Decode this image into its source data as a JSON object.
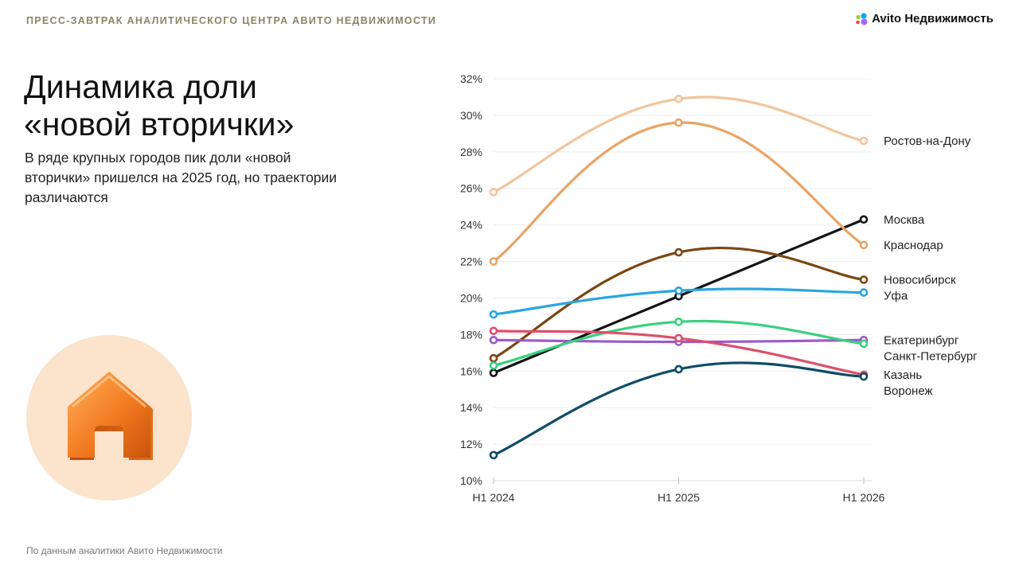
{
  "header": {
    "label": "ПРЕСС-ЗАВТРАК АНАЛИТИЧЕСКОГО ЦЕНТРА АВИТО НЕДВИЖИМОСТИ",
    "logo_text": "Avito Недвижимость"
  },
  "slide": {
    "title_line1": "Динамика доли",
    "title_line2": "«новой вторички»",
    "subtitle": "В ряде крупных городов пик доли «новой вторички» пришелся на 2025 год, но траектории различаются",
    "illustration_icon": "house-icon"
  },
  "footer": {
    "source": "По данным аналитики Авито Недвижимости"
  },
  "chart_data": {
    "type": "line",
    "title": "",
    "xlabel": "",
    "ylabel": "",
    "categories": [
      "H1 2024",
      "H1 2025",
      "H1 2026"
    ],
    "ylim": [
      10,
      32
    ],
    "yticks": [
      10,
      12,
      14,
      16,
      18,
      20,
      22,
      24,
      26,
      28,
      30,
      32
    ],
    "ytick_suffix": "%",
    "grid": true,
    "legend": "direct-labels-right",
    "series": [
      {
        "name": "Ростов-на-Дону",
        "values": [
          25.8,
          30.9,
          28.6
        ],
        "color": "#f1c59c"
      },
      {
        "name": "Москва",
        "values": [
          15.9,
          20.1,
          24.3
        ],
        "color": "#141414"
      },
      {
        "name": "Краснодар",
        "values": [
          22.0,
          29.6,
          22.9
        ],
        "color": "#e9a466"
      },
      {
        "name": "Новосибирск",
        "values": [
          16.7,
          22.5,
          21.0
        ],
        "color": "#7b4613"
      },
      {
        "name": "Уфа",
        "values": [
          19.1,
          20.4,
          20.3
        ],
        "color": "#29a6df"
      },
      {
        "name": "Екатеринбург",
        "values": [
          17.7,
          17.6,
          17.7
        ],
        "color": "#9b59c9"
      },
      {
        "name": "Санкт-Петербург",
        "values": [
          16.3,
          18.7,
          17.5
        ],
        "color": "#39d07f"
      },
      {
        "name": "Казань",
        "values": [
          18.2,
          17.8,
          15.8
        ],
        "color": "#dc506a"
      },
      {
        "name": "Воронеж",
        "values": [
          11.4,
          16.1,
          15.7
        ],
        "color": "#0f4c66"
      }
    ]
  }
}
